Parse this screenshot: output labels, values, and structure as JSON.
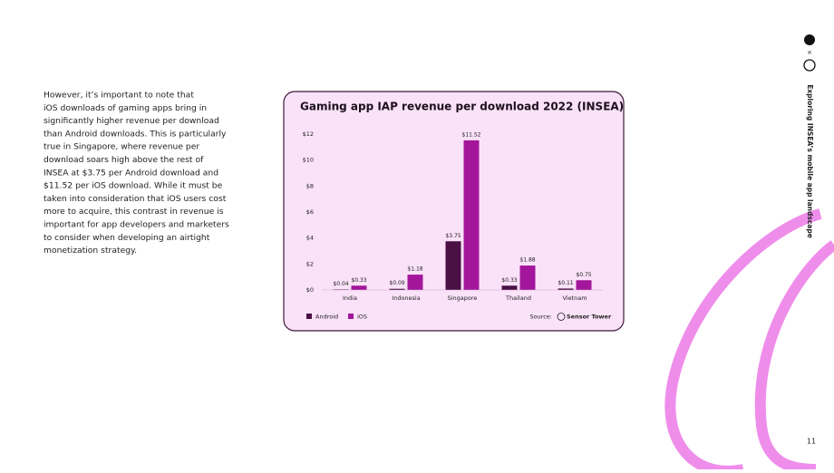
{
  "body_text": [
    "However, it’s important to note that",
    "iOS downloads of gaming apps bring in",
    "significantly higher revenue per download",
    "than Android downloads. This is particularly",
    "true in Singapore, where revenue per",
    "download soars high above the rest of",
    "INSEA at $3.75 per Android download and",
    "$11.52 per iOS download. While it must be",
    "taken into consideration that iOS users cost",
    "more to acquire, this contrast in revenue is",
    "important for app developers and marketers",
    "to consider when developing an airtight",
    "monetization strategy."
  ],
  "side_title": "Exploring INSEA’s mobile app landscape",
  "logo_separator": "×",
  "page_number": "11",
  "chart_data": {
    "type": "bar",
    "title": "Gaming app IAP revenue per download 2022 (INSEA)",
    "categories": [
      "India",
      "Indonesia",
      "Singapore",
      "Thailand",
      "Vietnam"
    ],
    "series": [
      {
        "name": "Android",
        "color": "#4a0f45",
        "values": [
          0.04,
          0.09,
          3.75,
          0.33,
          0.11
        ],
        "value_labels": [
          "$0.04",
          "$0.09",
          "$3.75",
          "$0.33",
          "$0.11"
        ]
      },
      {
        "name": "iOS",
        "color": "#a3169b",
        "values": [
          0.33,
          1.18,
          11.52,
          1.88,
          0.75
        ],
        "value_labels": [
          "$0.33",
          "$1.18",
          "$11.52",
          "$1.88",
          "$0.75"
        ]
      }
    ],
    "ylim": [
      0,
      12
    ],
    "yticks": [
      {
        "value": 0,
        "label": "$0"
      },
      {
        "value": 2,
        "label": "$2"
      },
      {
        "value": 4,
        "label": "$4"
      },
      {
        "value": 6,
        "label": "$6"
      },
      {
        "value": 8,
        "label": "$8"
      },
      {
        "value": 10,
        "label": "$10"
      },
      {
        "value": 12,
        "label": "$12"
      }
    ],
    "grid": false,
    "legend": "bottom-left",
    "source_label": "Source:",
    "source": "Sensor Tower"
  }
}
